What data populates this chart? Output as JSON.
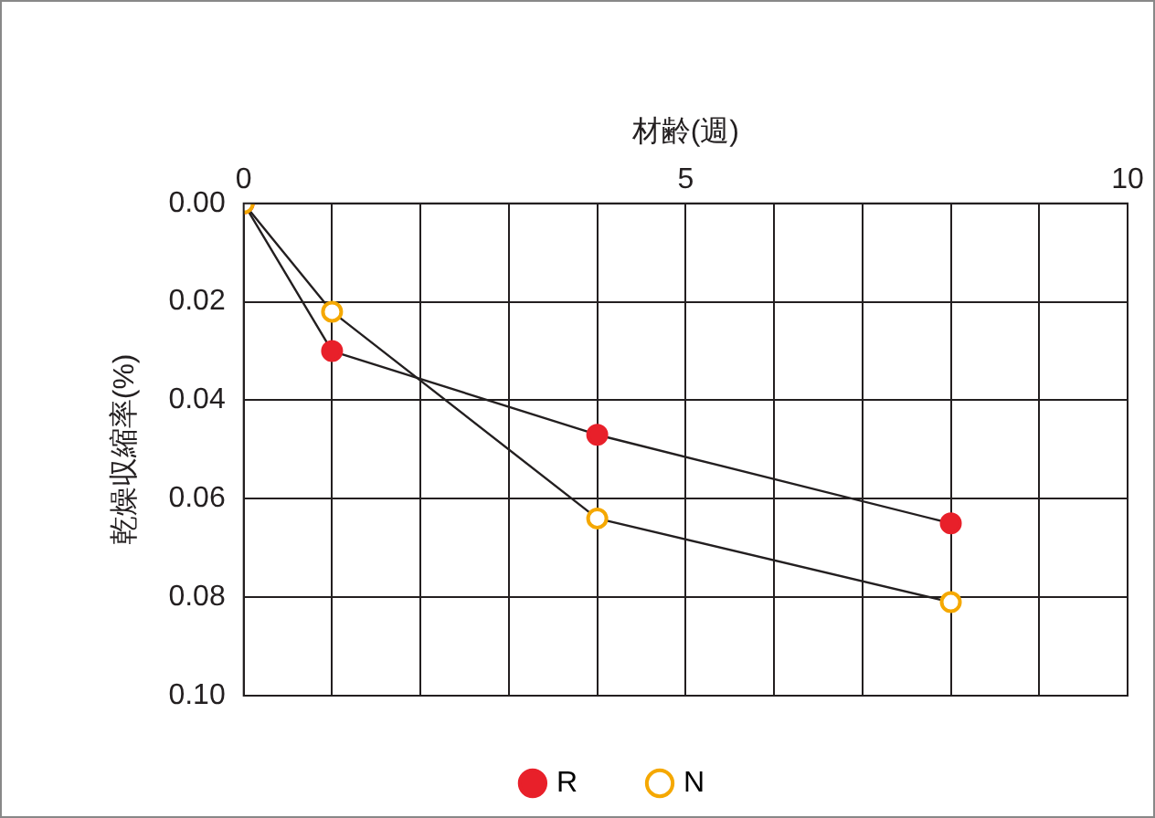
{
  "chart_data": {
    "type": "line",
    "xlabel": "材齢(週)",
    "ylabel": "乾燥収縮率(%)",
    "xlim": [
      0,
      10
    ],
    "xticks": [
      0,
      {
        "value": 1,
        "label": null
      },
      {
        "value": 2,
        "label": null
      },
      {
        "value": 3,
        "label": null
      },
      {
        "value": 4,
        "label": null
      },
      5,
      {
        "value": 6,
        "label": null
      },
      {
        "value": 7,
        "label": null
      },
      {
        "value": 8,
        "label": null
      },
      {
        "value": 9,
        "label": null
      },
      10
    ],
    "ylim": [
      0.1,
      0
    ],
    "yticks": [
      {
        "value": 0,
        "label": "0.00"
      },
      {
        "value": 0.02,
        "label": "0.02"
      },
      {
        "value": 0.04,
        "label": "0.04"
      },
      {
        "value": 0.06,
        "label": "0.06"
      },
      {
        "value": 0.08,
        "label": "0.08"
      },
      {
        "value": 0.1,
        "label": "0.10"
      }
    ],
    "grid": true,
    "legend": "bottom",
    "marker": "circle",
    "line_style": "solid",
    "series": [
      {
        "name": "R",
        "color": "#e8202a",
        "x": [
          0,
          1,
          4,
          8
        ],
        "values": [
          0,
          0.03,
          0.047,
          0.065
        ]
      },
      {
        "name": "N",
        "color": "#f5a800",
        "x": [
          0,
          1,
          4,
          8
        ],
        "values": [
          0,
          0.022,
          0.064,
          0.081
        ]
      }
    ]
  }
}
